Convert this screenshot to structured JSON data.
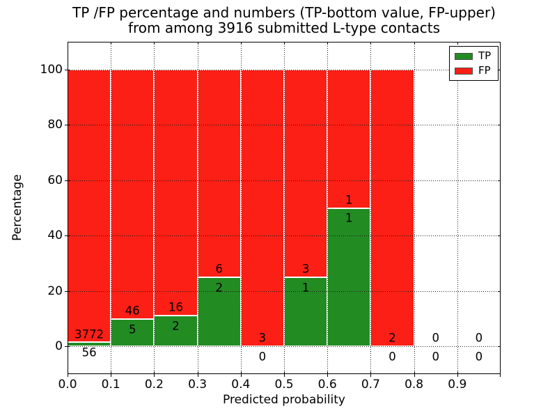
{
  "title": {
    "line1": "TP /FP percentage and numbers (TP-bottom value, FP-upper)",
    "line2": "from among 3916 submitted L-type contacts"
  },
  "chart_data": {
    "type": "bar",
    "stacked": true,
    "title": "TP /FP percentage and numbers (TP-bottom value, FP-upper)\nfrom among 3916 submitted L-type contacts",
    "xlabel": "Predicted probability",
    "ylabel": "Percentage",
    "total_contacts": 3916,
    "bins": [
      "0.0-0.1",
      "0.1-0.2",
      "0.2-0.3",
      "0.3-0.4",
      "0.4-0.5",
      "0.5-0.6",
      "0.6-0.7",
      "0.7-0.8",
      "0.8-0.9",
      "0.9-1.0"
    ],
    "bin_width": 0.1,
    "series": [
      {
        "name": "TP",
        "color": "#228b22",
        "counts": [
          56,
          5,
          2,
          2,
          0,
          1,
          1,
          0,
          0,
          0
        ]
      },
      {
        "name": "FP",
        "color": "#fb1f15",
        "counts": [
          3772,
          46,
          16,
          6,
          3,
          3,
          1,
          2,
          0,
          0
        ]
      }
    ],
    "tp_percent_of_bar": [
      1.46,
      9.8,
      11.11,
      25.0,
      0.0,
      25.0,
      50.0,
      0.0,
      null,
      null
    ],
    "bar_total_height_percent": 100,
    "xlim": [
      0.0,
      1.0
    ],
    "ylim": [
      -10,
      110
    ],
    "xticks": [
      "0.0",
      "0.1",
      "0.2",
      "0.3",
      "0.4",
      "0.5",
      "0.6",
      "0.7",
      "0.8",
      "0.9"
    ],
    "yticks": [
      "0",
      "20",
      "40",
      "60",
      "80",
      "100"
    ],
    "grid": true,
    "grid_style": "dotted",
    "bar_edge_color": "#ffffff",
    "legend": {
      "position": "upper right",
      "entries": [
        {
          "label": "TP",
          "color": "#228b22"
        },
        {
          "label": "FP",
          "color": "#fb1f15"
        }
      ]
    }
  }
}
